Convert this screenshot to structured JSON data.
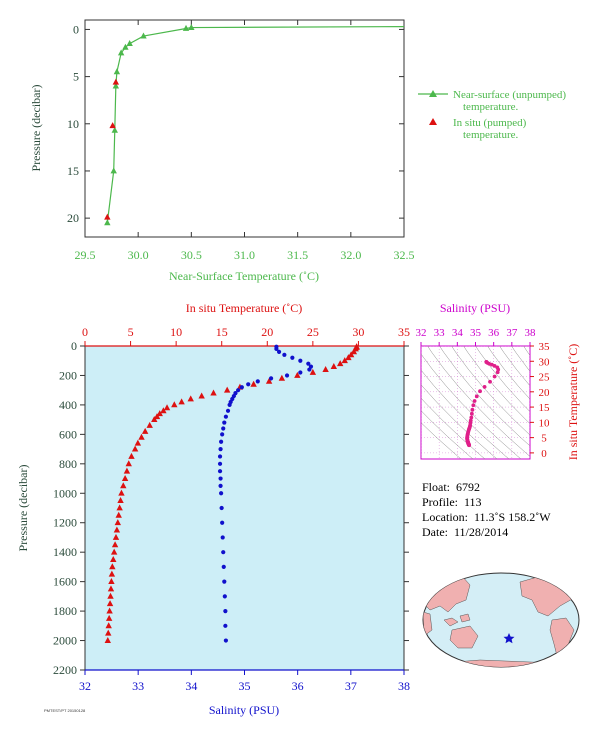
{
  "colors": {
    "near_surface": "#4cb84c",
    "in_situ": "#dd1111",
    "salinity": "#1010cc",
    "salinity_label": "#cc00cc",
    "pink_profile": "#e0208a",
    "panel_bg": "#cdeef7",
    "axis_dark": "#2b4b3b",
    "land": "#f0b0b0",
    "ocean": "#d4eef6"
  },
  "chart_data": [
    {
      "id": "near-surface",
      "type": "line",
      "xlabel": "Near-Surface Temperature (˚C)",
      "ylabel": "Pressure (decibar)",
      "xlim": [
        29.5,
        32.5
      ],
      "ylim": [
        22,
        -1
      ],
      "xticks": [
        "29.5",
        "30.0",
        "30.5",
        "31.0",
        "31.5",
        "32.0",
        "32.5"
      ],
      "yticks": [
        "0",
        "5",
        "10",
        "15",
        "20"
      ],
      "legend": {
        "position": "right",
        "near_surface_line1": "Near-surface (unpumped)",
        "near_surface_line2": "temperature.",
        "in_situ_line1": "In situ (pumped)",
        "in_situ_line2": "temperature."
      },
      "series": [
        {
          "name": "Near-surface (unpumped) temperature.",
          "marker": "triangle",
          "x": [
            32.5,
            30.5,
            30.45,
            30.05,
            29.92,
            29.88,
            29.84,
            29.8,
            29.79,
            29.78,
            29.77,
            29.71
          ],
          "y": [
            -0.3,
            -0.2,
            -0.1,
            0.7,
            1.5,
            1.9,
            2.5,
            4.5,
            6.0,
            10.7,
            15.0,
            20.5
          ]
        },
        {
          "name": "In situ (pumped) temperature.",
          "marker": "triangle",
          "x": [
            29.79,
            29.76,
            29.71
          ],
          "y": [
            5.6,
            10.2,
            19.9
          ]
        }
      ]
    },
    {
      "id": "profile",
      "type": "scatter",
      "top_xlabel": "In situ Temperature (˚C)",
      "bottom_xlabel": "Salinity (PSU)",
      "ylabel": "Pressure (decibar)",
      "temp_lim": [
        0,
        35
      ],
      "sal_lim": [
        32,
        38
      ],
      "ylim": [
        2200,
        0
      ],
      "temp_ticks": [
        "0",
        "5",
        "10",
        "15",
        "20",
        "25",
        "30",
        "35"
      ],
      "sal_ticks": [
        "32",
        "33",
        "34",
        "35",
        "36",
        "37",
        "38"
      ],
      "yticks": [
        "0",
        "200",
        "400",
        "600",
        "800",
        "1000",
        "1200",
        "1400",
        "1600",
        "1800",
        "2000",
        "2200"
      ],
      "temperature": {
        "p": [
          5,
          10,
          20,
          40,
          60,
          80,
          100,
          120,
          140,
          160,
          180,
          200,
          220,
          240,
          260,
          280,
          300,
          320,
          340,
          360,
          380,
          400,
          420,
          440,
          460,
          480,
          500,
          540,
          580,
          620,
          660,
          700,
          750,
          800,
          850,
          900,
          950,
          1000,
          1050,
          1100,
          1150,
          1200,
          1250,
          1300,
          1350,
          1400,
          1450,
          1500,
          1550,
          1600,
          1650,
          1700,
          1750,
          1800,
          1850,
          1900,
          1950,
          2000
        ],
        "t": [
          29.8,
          29.8,
          29.7,
          29.5,
          29.2,
          28.9,
          28.5,
          28.0,
          27.3,
          26.4,
          25.0,
          23.3,
          21.6,
          20.2,
          18.5,
          17.0,
          15.6,
          14.1,
          12.8,
          11.6,
          10.6,
          9.8,
          9.0,
          8.6,
          8.2,
          7.9,
          7.6,
          7.1,
          6.6,
          6.2,
          5.8,
          5.5,
          5.1,
          4.8,
          4.6,
          4.4,
          4.2,
          4.0,
          3.9,
          3.8,
          3.7,
          3.6,
          3.5,
          3.4,
          3.3,
          3.2,
          3.1,
          3.0,
          2.95,
          2.9,
          2.85,
          2.8,
          2.75,
          2.7,
          2.65,
          2.6,
          2.55,
          2.5
        ]
      },
      "salinity": {
        "p": [
          5,
          20,
          40,
          60,
          80,
          100,
          120,
          140,
          160,
          180,
          200,
          220,
          240,
          260,
          280,
          300,
          320,
          340,
          360,
          380,
          400,
          440,
          480,
          520,
          560,
          600,
          650,
          700,
          750,
          800,
          850,
          900,
          950,
          1000,
          1100,
          1200,
          1300,
          1400,
          1500,
          1600,
          1700,
          1800,
          1900,
          2000
        ],
        "s": [
          35.6,
          35.6,
          35.65,
          35.75,
          35.9,
          36.05,
          36.2,
          36.25,
          36.22,
          36.05,
          35.8,
          35.5,
          35.25,
          35.07,
          34.95,
          34.88,
          34.83,
          34.8,
          34.77,
          34.74,
          34.72,
          34.69,
          34.65,
          34.62,
          34.6,
          34.58,
          34.56,
          34.55,
          34.54,
          34.54,
          34.54,
          34.55,
          34.55,
          34.56,
          34.57,
          34.58,
          34.59,
          34.6,
          34.61,
          34.62,
          34.63,
          34.64,
          34.64,
          34.65
        ]
      }
    },
    {
      "id": "ts-diagram",
      "type": "scatter",
      "top_xlabel": "Salinity (PSU)",
      "right_ylabel": "In situ Temperature (˚C)",
      "sal_lim": [
        32,
        38
      ],
      "temp_lim": [
        -2,
        35
      ],
      "sal_ticks": [
        "32",
        "33",
        "34",
        "35",
        "36",
        "37",
        "38"
      ],
      "temp_ticks": [
        "0",
        "5",
        "10",
        "15",
        "20",
        "25",
        "30",
        "35"
      ]
    }
  ],
  "info": {
    "float_label": "Float:",
    "float_value": "6792",
    "profile_label": "Profile:",
    "profile_value": "113",
    "location_label": "Location:",
    "location_value": "11.3˚S  158.2˚W",
    "date_label": "Date:",
    "date_value": "11/28/2014"
  },
  "map": {
    "marker_icon": "star-icon"
  },
  "footer": "PMTEST/PT 20150128"
}
